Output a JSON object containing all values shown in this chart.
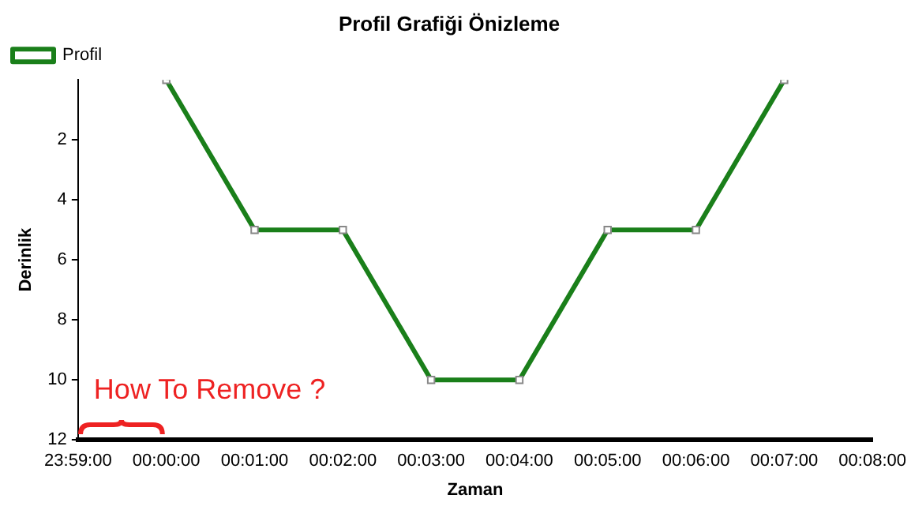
{
  "chart_data": {
    "type": "line",
    "title": "Profil Grafiği Önizleme",
    "xlabel": "Zaman",
    "ylabel": "Derinlik",
    "categories": [
      "23:59:00",
      "00:00:00",
      "00:01:00",
      "00:02:00",
      "00:03:00",
      "00:04:00",
      "00:05:00",
      "00:06:00",
      "00:07:00",
      "00:08:00"
    ],
    "series": [
      {
        "name": "Profil",
        "color": "#1a7f1a",
        "values": [
          null,
          0,
          5,
          5,
          10,
          10,
          5,
          5,
          0,
          null
        ]
      }
    ],
    "ylim": [
      12,
      0
    ],
    "yticks": [
      2,
      4,
      6,
      8,
      10,
      12
    ],
    "grid": false,
    "legend": "top left",
    "marker": "square",
    "line_style": "solid",
    "annotations": [
      "How To Remove ?"
    ]
  }
}
